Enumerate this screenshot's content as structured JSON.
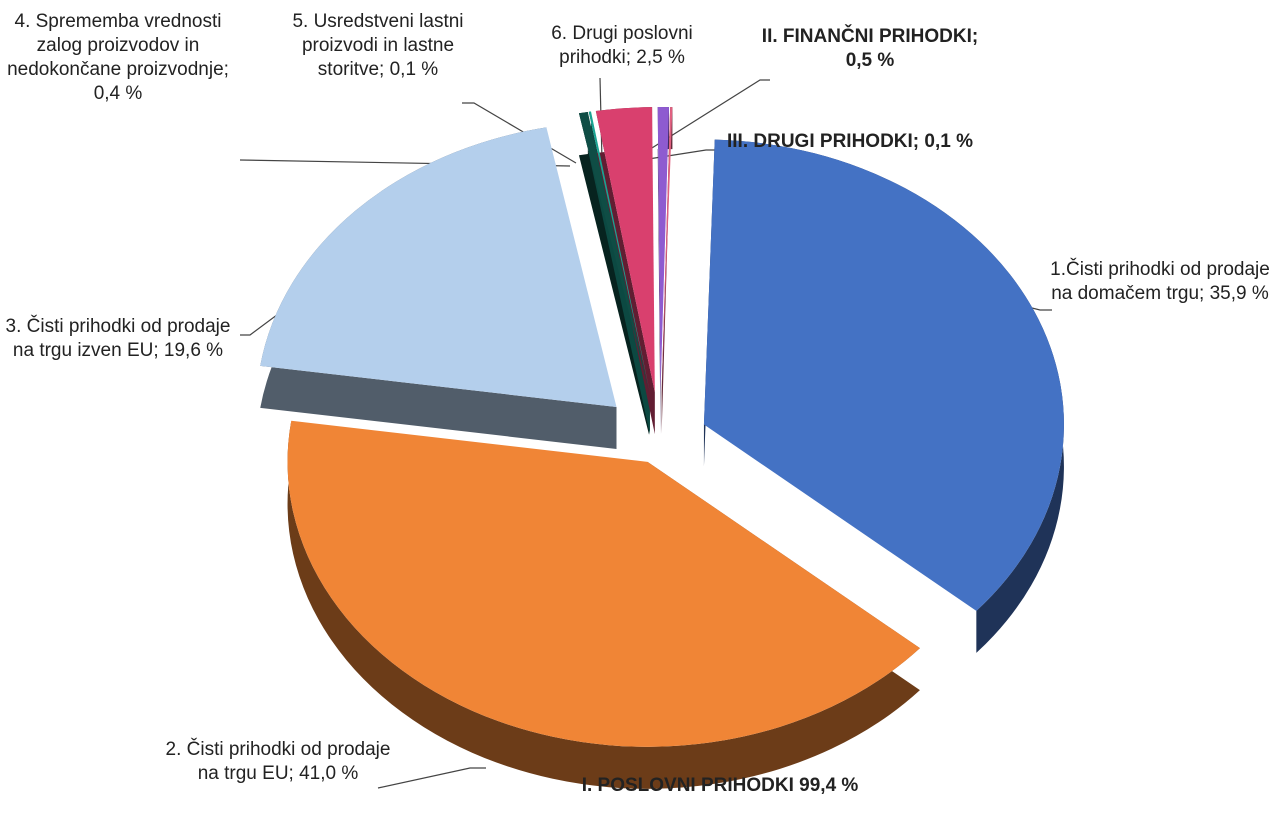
{
  "chart_data": {
    "type": "pie3d",
    "annotation": "I. POSLOVNI PRIHODKI 99,4 %",
    "values": [
      35.9,
      41.0,
      19.6,
      0.4,
      0.1,
      2.5,
      0.5,
      0.1
    ],
    "value_labels": [
      "1.Čisti prihodki od prodaje na domačem trgu; 35,9 %",
      "2. Čisti prihodki od prodaje na trgu EU; 41,0 %",
      "3. Čisti prihodki od prodaje na trgu izven EU; 19,6 %",
      "4. Sprememba vrednosti zalog proizvodov in nedokončane proizvodnje; 0,4 %",
      "5. Usredstveni lastni proizvodi in lastne storitve; 0,1 %",
      "6. Drugi poslovni prihodki; 2,5 %",
      "II. FINANČNI PRIHODKI; 0,5 %",
      "III. DRUGI PRIHODKI; 0,1 %"
    ],
    "colors": [
      "#4472c4",
      "#f08536",
      "#b4cfec",
      "#0f4d45",
      "#1aa392",
      "#d9406e",
      "#8e5bd0",
      "#e06080"
    ],
    "bold_labels": [
      6,
      7
    ]
  }
}
